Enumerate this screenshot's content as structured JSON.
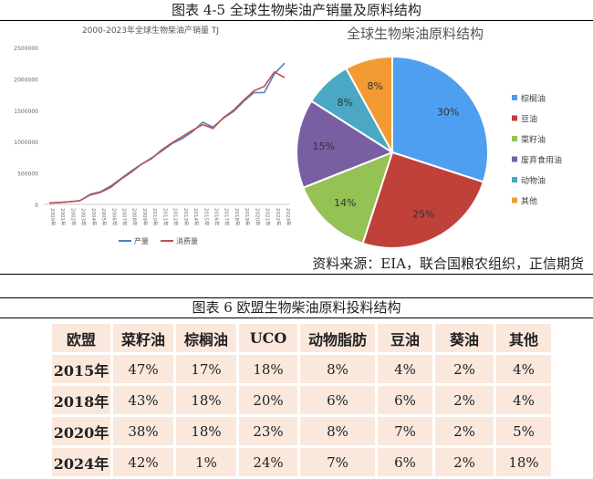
{
  "figure1": {
    "title": "图表 4-5 全球生物柴油产销量及原料结构",
    "source": "资料来源：EIA，联合国粮农组织，正信期货"
  },
  "chart_data": [
    {
      "type": "line",
      "title": "2000-2023年全球生物柴油产销量",
      "unit": "TJ",
      "x": [
        "2000年",
        "2001年",
        "2002年",
        "2003年",
        "2004年",
        "2005年",
        "2006年",
        "2007年",
        "2008年",
        "2009年",
        "2010年",
        "2011年",
        "2012年",
        "2013年",
        "2014年",
        "2015年",
        "2016年",
        "2017年",
        "2018年",
        "2019年",
        "2020年",
        "2021年",
        "2022年",
        "2023年"
      ],
      "y_ticks": [
        "0",
        "500000",
        "1000000",
        "1500000",
        "2000000",
        "2500000"
      ],
      "ylim": [
        0,
        2500000
      ],
      "series": [
        {
          "name": "产量",
          "color": "#4f81bd",
          "values": [
            20000,
            30000,
            40000,
            60000,
            160000,
            200000,
            290000,
            410000,
            530000,
            640000,
            740000,
            850000,
            970000,
            1050000,
            1160000,
            1310000,
            1230000,
            1370000,
            1480000,
            1640000,
            1780000,
            1780000,
            2080000,
            2250000
          ]
        },
        {
          "name": "消费量",
          "color": "#c0504d",
          "values": [
            20000,
            30000,
            40000,
            60000,
            150000,
            190000,
            270000,
            400000,
            510000,
            640000,
            730000,
            870000,
            980000,
            1080000,
            1180000,
            1270000,
            1210000,
            1380000,
            1500000,
            1660000,
            1810000,
            1880000,
            2110000,
            2020000
          ]
        }
      ],
      "legend": "bottom"
    },
    {
      "type": "pie",
      "title": "全球生物柴油原料结构",
      "slices": [
        {
          "label": "棕榈油",
          "value": 30,
          "text": "30%",
          "color": "#4f9ff0"
        },
        {
          "label": "豆油",
          "value": 25,
          "text": "25%",
          "color": "#c0413a"
        },
        {
          "label": "菜籽油",
          "value": 14,
          "text": "14%",
          "color": "#94c255"
        },
        {
          "label": "废弃食用油",
          "value": 15,
          "text": "15%",
          "color": "#7a5ea2"
        },
        {
          "label": "动物油",
          "value": 8,
          "text": "8%",
          "color": "#4aa8c4"
        },
        {
          "label": "其他",
          "value": 8,
          "text": "8%",
          "color": "#f39a33"
        }
      ],
      "legend": "right"
    },
    {
      "type": "table",
      "title": "图表 6 欧盟生物柴油原料投料结构",
      "columns": [
        "欧盟",
        "菜籽油",
        "棕榈油",
        "UCO",
        "动物脂肪",
        "豆油",
        "葵油",
        "其他"
      ],
      "rows": [
        [
          "2015年",
          "47%",
          "17%",
          "18%",
          "8%",
          "4%",
          "2%",
          "4%"
        ],
        [
          "2018年",
          "43%",
          "18%",
          "20%",
          "6%",
          "6%",
          "2%",
          "4%"
        ],
        [
          "2020年",
          "38%",
          "18%",
          "23%",
          "8%",
          "7%",
          "2%",
          "5%"
        ],
        [
          "2024年",
          "42%",
          "1%",
          "24%",
          "7%",
          "6%",
          "2%",
          "18%"
        ]
      ]
    }
  ]
}
